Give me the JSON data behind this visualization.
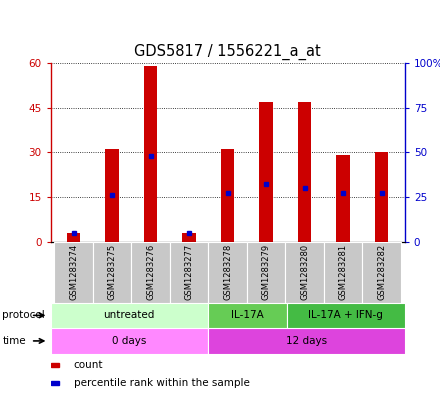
{
  "title": "GDS5817 / 1556221_a_at",
  "samples": [
    "GSM1283274",
    "GSM1283275",
    "GSM1283276",
    "GSM1283277",
    "GSM1283278",
    "GSM1283279",
    "GSM1283280",
    "GSM1283281",
    "GSM1283282"
  ],
  "counts": [
    3,
    31,
    59,
    3,
    31,
    47,
    47,
    29,
    30
  ],
  "percentiles": [
    5,
    26,
    48,
    5,
    27,
    32,
    30,
    27,
    27
  ],
  "ylim_left": [
    0,
    60
  ],
  "ylim_right": [
    0,
    100
  ],
  "yticks_left": [
    0,
    15,
    30,
    45,
    60
  ],
  "yticks_right": [
    0,
    25,
    50,
    75,
    100
  ],
  "ytick_labels_left": [
    "0",
    "15",
    "30",
    "45",
    "60"
  ],
  "ytick_labels_right": [
    "0",
    "25",
    "50",
    "75",
    "100%"
  ],
  "left_axis_color": "#cc0000",
  "right_axis_color": "#0000cc",
  "bar_color": "#cc0000",
  "percentile_color": "#0000cc",
  "protocol_groups": [
    {
      "label": "untreated",
      "start": 0,
      "end": 4,
      "color": "#ccffcc"
    },
    {
      "label": "IL-17A",
      "start": 4,
      "end": 6,
      "color": "#66cc55"
    },
    {
      "label": "IL-17A + IFN-g",
      "start": 6,
      "end": 9,
      "color": "#44bb44"
    }
  ],
  "time_groups": [
    {
      "label": "0 days",
      "start": 0,
      "end": 4,
      "color": "#ff88ff"
    },
    {
      "label": "12 days",
      "start": 4,
      "end": 9,
      "color": "#dd44dd"
    }
  ],
  "legend_items": [
    {
      "color": "#cc0000",
      "label": "count"
    },
    {
      "color": "#0000cc",
      "label": "percentile rank within the sample"
    }
  ],
  "bar_width": 0.35,
  "sample_box_color": "#c8c8c8",
  "grid_linestyle": "dotted"
}
